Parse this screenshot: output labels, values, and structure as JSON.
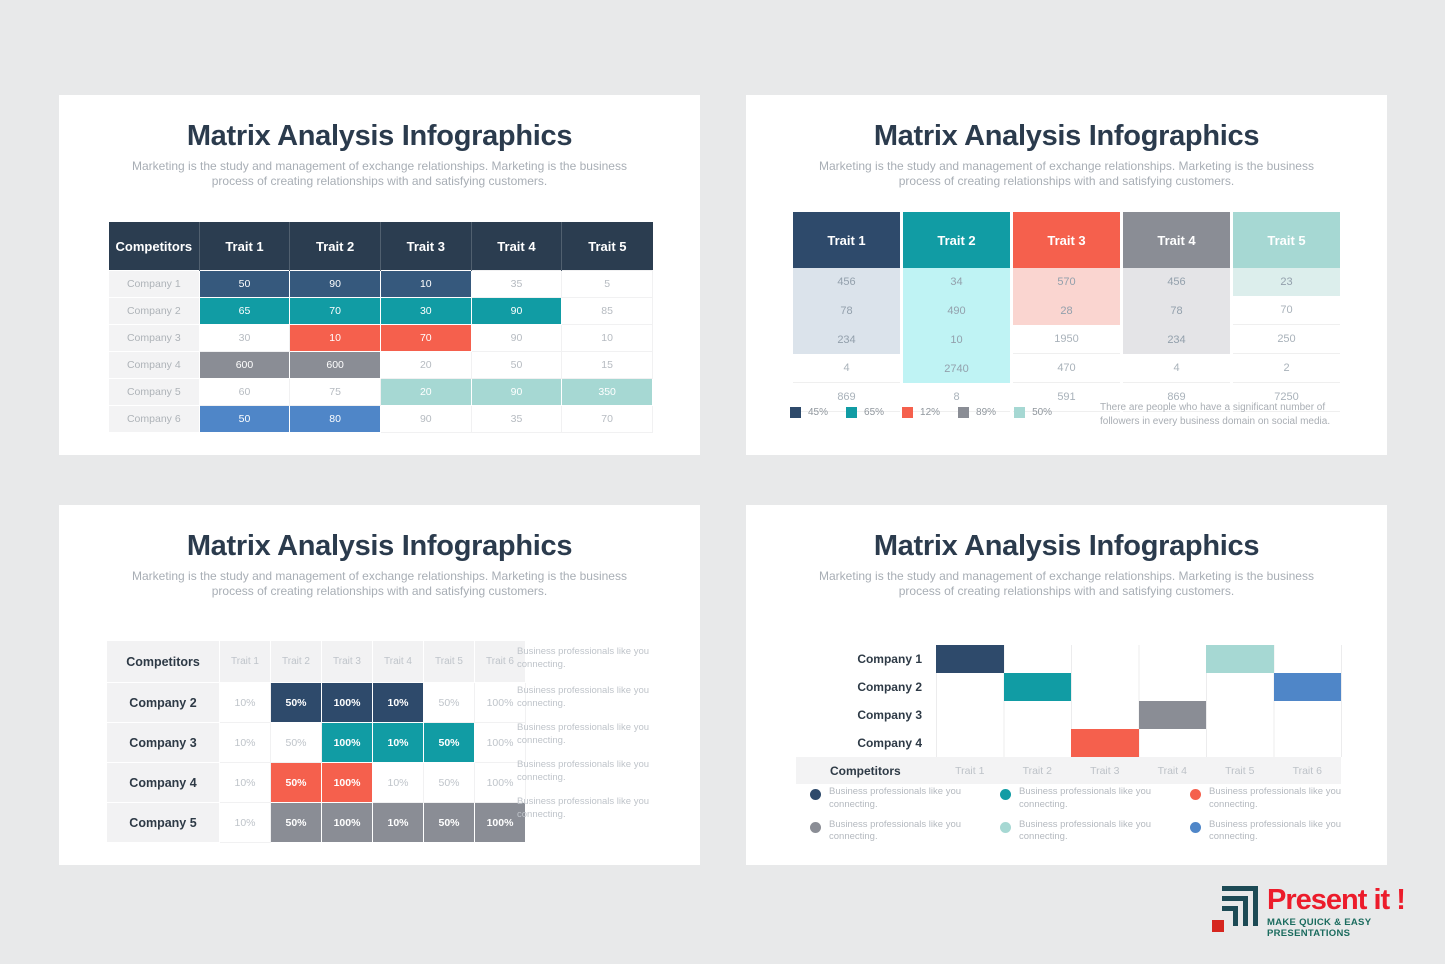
{
  "shared": {
    "title": "Matrix Analysis Infographics",
    "subtitle": "Marketing is the study and management of exchange relationships. Marketing is the business process of creating relationships with and satisfying customers."
  },
  "colors": {
    "header_navy": "#2B3D50",
    "steel": "#36597D",
    "navy": "#2E4A6B",
    "teal": "#119CA4",
    "red": "#F5604D",
    "gray": "#8A8D95",
    "light_teal": "#A6D8D3",
    "blue": "#4F86C8",
    "shade_blue": "#DBE3EB",
    "shade_cyan": "#BFF3F4",
    "shade_pink": "#FAD5D0",
    "shade_gray": "#E4E4E7",
    "shade_teal": "#DCEEEC"
  },
  "logo": {
    "brand": "Present it !",
    "tagline": "MAKE QUICK & EASY PRESENTATIONS"
  },
  "chart_data": [
    {
      "type": "table",
      "position": "top-left",
      "columns": [
        "Competitors",
        "Trait 1",
        "Trait 2",
        "Trait 3",
        "Trait 4",
        "Trait 5"
      ],
      "rows": [
        {
          "label": "Company 1",
          "cells": [
            {
              "v": "50",
              "c": "steel"
            },
            {
              "v": "90",
              "c": "steel"
            },
            {
              "v": "10",
              "c": "steel"
            },
            {
              "v": "35"
            },
            {
              "v": "5"
            }
          ]
        },
        {
          "label": "Company 2",
          "cells": [
            {
              "v": "65",
              "c": "teal"
            },
            {
              "v": "70",
              "c": "teal"
            },
            {
              "v": "30",
              "c": "teal"
            },
            {
              "v": "90",
              "c": "teal"
            },
            {
              "v": "85"
            }
          ]
        },
        {
          "label": "Company 3",
          "cells": [
            {
              "v": "30"
            },
            {
              "v": "10",
              "c": "red"
            },
            {
              "v": "70",
              "c": "red"
            },
            {
              "v": "90"
            },
            {
              "v": "10"
            }
          ]
        },
        {
          "label": "Company 4",
          "cells": [
            {
              "v": "600",
              "c": "gray"
            },
            {
              "v": "600",
              "c": "gray"
            },
            {
              "v": "20"
            },
            {
              "v": "50"
            },
            {
              "v": "15"
            }
          ]
        },
        {
          "label": "Company 5",
          "cells": [
            {
              "v": "60"
            },
            {
              "v": "75"
            },
            {
              "v": "20",
              "c": "light_teal"
            },
            {
              "v": "90",
              "c": "light_teal"
            },
            {
              "v": "350",
              "c": "light_teal"
            }
          ]
        },
        {
          "label": "Company 6",
          "cells": [
            {
              "v": "50",
              "c": "blue"
            },
            {
              "v": "80",
              "c": "blue"
            },
            {
              "v": "90"
            },
            {
              "v": "35"
            },
            {
              "v": "70"
            }
          ]
        }
      ]
    },
    {
      "type": "table",
      "position": "top-right",
      "rows_count": 5,
      "series": [
        {
          "header": "Trait 1",
          "header_color": "navy",
          "shade": "shade_blue",
          "shaded_rows": 3,
          "values": [
            "456",
            "78",
            "234",
            "4",
            "869"
          ]
        },
        {
          "header": "Trait 2",
          "header_color": "teal",
          "shade": "shade_cyan",
          "shaded_rows": 4,
          "values": [
            "34",
            "490",
            "10",
            "2740",
            "8"
          ]
        },
        {
          "header": "Trait 3",
          "header_color": "red",
          "shade": "shade_pink",
          "shaded_rows": 2,
          "values": [
            "570",
            "28",
            "1950",
            "470",
            "591"
          ]
        },
        {
          "header": "Trait 4",
          "header_color": "gray",
          "shade": "shade_gray",
          "shaded_rows": 3,
          "values": [
            "456",
            "78",
            "234",
            "4",
            "869"
          ]
        },
        {
          "header": "Trait 5",
          "header_color": "light_teal",
          "shade": "shade_teal",
          "shaded_rows": 1,
          "values": [
            "23",
            "70",
            "250",
            "2",
            "7250"
          ]
        }
      ],
      "legend": [
        {
          "color": "navy",
          "label": "45%"
        },
        {
          "color": "teal",
          "label": "65%"
        },
        {
          "color": "red",
          "label": "12%"
        },
        {
          "color": "gray",
          "label": "89%"
        },
        {
          "color": "light_teal",
          "label": "50%"
        }
      ],
      "note": "There are people who have a significant number of followers in every business domain on social media."
    },
    {
      "type": "table",
      "position": "bottom-left",
      "columns": [
        "Competitors",
        "Trait 1",
        "Trait 2",
        "Trait 3",
        "Trait 4",
        "Trait 5",
        "Trait 6"
      ],
      "row_note": "Business professionals like you connecting.",
      "rows": [
        {
          "label": "Company 2",
          "cells": [
            {
              "v": "10%"
            },
            {
              "v": "50%",
              "c": "navy"
            },
            {
              "v": "100%",
              "c": "navy"
            },
            {
              "v": "10%",
              "c": "navy"
            },
            {
              "v": "50%"
            },
            {
              "v": "100%"
            }
          ]
        },
        {
          "label": "Company 3",
          "cells": [
            {
              "v": "10%"
            },
            {
              "v": "50%"
            },
            {
              "v": "100%",
              "c": "teal"
            },
            {
              "v": "10%",
              "c": "teal"
            },
            {
              "v": "50%",
              "c": "teal"
            },
            {
              "v": "100%"
            }
          ]
        },
        {
          "label": "Company 4",
          "cells": [
            {
              "v": "10%"
            },
            {
              "v": "50%",
              "c": "red"
            },
            {
              "v": "100%",
              "c": "red"
            },
            {
              "v": "10%"
            },
            {
              "v": "50%"
            },
            {
              "v": "100%"
            }
          ]
        },
        {
          "label": "Company 5",
          "cells": [
            {
              "v": "10%"
            },
            {
              "v": "50%",
              "c": "gray"
            },
            {
              "v": "100%",
              "c": "gray"
            },
            {
              "v": "10%",
              "c": "gray"
            },
            {
              "v": "50%",
              "c": "gray"
            },
            {
              "v": "100%",
              "c": "gray"
            }
          ]
        }
      ]
    },
    {
      "type": "matrix-bar",
      "position": "bottom-right",
      "companies": [
        "Company 1",
        "Company 2",
        "Company 3",
        "Company 4"
      ],
      "bottom_label": "Competitors",
      "traits": [
        "Trait 1",
        "Trait 2",
        "Trait 3",
        "Trait 4",
        "Trait 5",
        "Trait 6"
      ],
      "bars": [
        {
          "trait_index": 0,
          "company_index": 0,
          "color": "navy"
        },
        {
          "trait_index": 1,
          "company_index": 1,
          "color": "teal"
        },
        {
          "trait_index": 2,
          "company_index": 3,
          "color": "red"
        },
        {
          "trait_index": 3,
          "company_index": 2,
          "color": "gray"
        },
        {
          "trait_index": 4,
          "company_index": 0,
          "color": "light_teal"
        },
        {
          "trait_index": 5,
          "company_index": 1,
          "color": "blue"
        }
      ],
      "legend": [
        {
          "color": "navy",
          "text": "Business professionals like you connecting."
        },
        {
          "color": "teal",
          "text": "Business professionals like you connecting."
        },
        {
          "color": "red",
          "text": "Business professionals like you connecting."
        },
        {
          "color": "gray",
          "text": "Business professionals like you connecting."
        },
        {
          "color": "light_teal",
          "text": "Business professionals like you connecting."
        },
        {
          "color": "blue",
          "text": "Business professionals like you connecting."
        }
      ]
    }
  ]
}
